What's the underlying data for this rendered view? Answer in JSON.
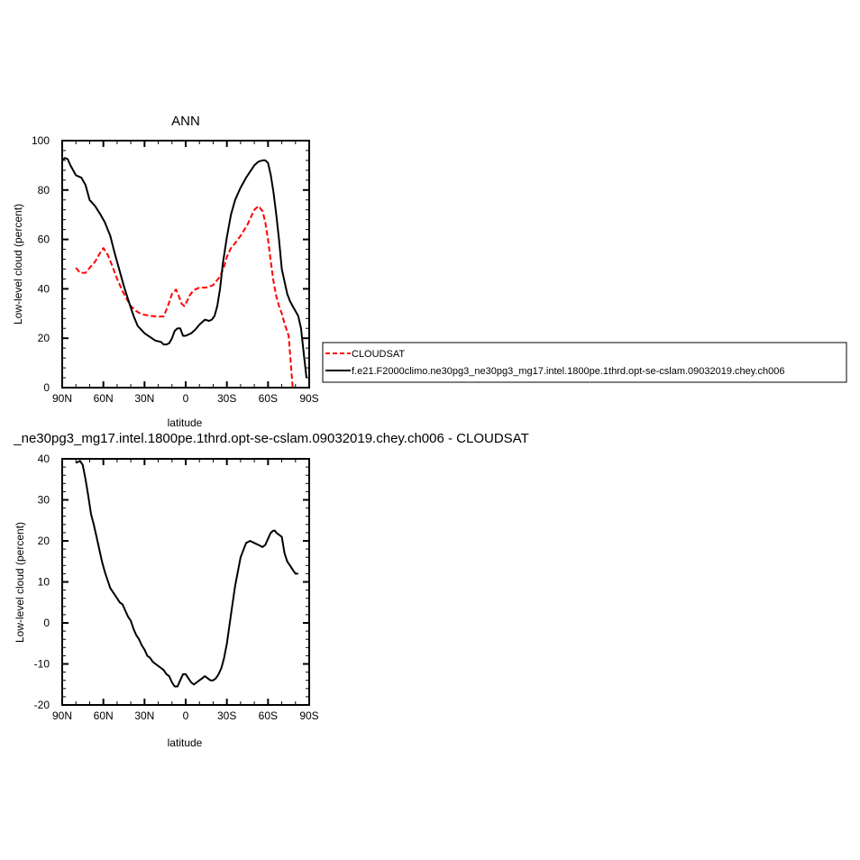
{
  "chart_data": [
    {
      "type": "line",
      "title": "ANN",
      "xlabel": "latitude",
      "ylabel": "Low-level cloud (percent)",
      "xlim": [
        90,
        -90
      ],
      "ylim": [
        0,
        100
      ],
      "xticks": [
        90,
        60,
        30,
        0,
        -30,
        -60,
        -90
      ],
      "xtick_labels": [
        "90N",
        "60N",
        "30N",
        "0",
        "30S",
        "60S",
        "90S"
      ],
      "yticks": [
        0,
        20,
        40,
        60,
        80,
        100
      ],
      "ytick_labels": [
        "0",
        "20",
        "40",
        "60",
        "80",
        "100"
      ],
      "legend_position": "right",
      "series": [
        {
          "name": "CLOUDSAT",
          "color": "#ff0000",
          "dash": "dashed",
          "x": [
            80,
            77,
            73,
            70,
            66,
            63,
            60,
            57,
            54,
            50,
            46,
            43,
            40,
            36,
            33,
            30,
            25,
            20,
            16,
            13,
            10,
            7,
            5,
            3,
            1,
            -1,
            -3,
            -6,
            -10,
            -15,
            -20,
            -25,
            -28,
            -30,
            -33,
            -36,
            -40,
            -45,
            -50,
            -53,
            -56,
            -58,
            -60,
            -62,
            -64,
            -66,
            -68,
            -70,
            -72,
            -75,
            -78,
            -81
          ],
          "y": [
            48.5,
            46.5,
            46.5,
            48.5,
            51,
            54,
            56.5,
            54,
            50,
            44,
            39,
            36,
            33,
            31,
            30,
            29.5,
            29,
            28.8,
            28.8,
            33,
            38,
            39.7,
            37,
            34,
            33,
            35,
            37.5,
            39.5,
            40.5,
            40.5,
            41.5,
            45,
            49,
            53,
            56.5,
            58.5,
            61.5,
            66,
            72,
            73.5,
            71.5,
            67,
            60,
            51,
            43,
            37,
            33,
            30,
            26,
            21,
            0,
            0
          ]
        },
        {
          "name": "f.e21.F2000climo.ne30pg3_ne30pg3_mg17.intel.1800pe.1thrd.opt-se-cslam.09032019.chey.ch006",
          "color": "#000000",
          "dash": "solid",
          "x": [
            90,
            88,
            86,
            84,
            80,
            76,
            73,
            70,
            66,
            62,
            59,
            55,
            52,
            48,
            45,
            41,
            38,
            35,
            30,
            26,
            22,
            18,
            16,
            14,
            12,
            10,
            8,
            6,
            4,
            2,
            0,
            -2,
            -4,
            -7,
            -10,
            -14,
            -17,
            -19,
            -21,
            -23,
            -25,
            -27,
            -30,
            -33,
            -36,
            -40,
            -44,
            -47,
            -50,
            -53,
            -56,
            -58,
            -60,
            -62,
            -64,
            -66,
            -68,
            -70,
            -72,
            -74,
            -76,
            -78,
            -80,
            -82,
            -84,
            -86,
            -88
          ],
          "y": [
            92,
            93,
            92.5,
            90,
            86,
            85,
            82,
            76,
            73.5,
            70,
            67,
            61.5,
            55,
            47,
            41,
            34,
            29,
            25,
            22,
            20.5,
            19,
            18.5,
            17.5,
            17.5,
            18,
            20,
            23,
            24,
            24,
            21,
            21,
            21.5,
            22,
            23.5,
            25.5,
            27.5,
            27,
            27.5,
            29,
            33,
            40,
            50,
            61,
            70,
            76,
            81,
            85,
            87.5,
            90,
            91.5,
            92,
            92,
            91,
            86,
            79,
            70,
            60,
            48,
            43,
            38,
            35,
            33,
            31,
            29,
            24,
            14,
            4
          ]
        }
      ]
    },
    {
      "type": "line",
      "title": "_ne30pg3_mg17.intel.1800pe.1thrd.opt-se-cslam.09032019.chey.ch006 - CLOUDSAT",
      "xlabel": "latitude",
      "ylabel": "Low-level cloud (percent)",
      "xlim": [
        90,
        -90
      ],
      "ylim": [
        -20,
        40
      ],
      "xticks": [
        90,
        60,
        30,
        0,
        -30,
        -60,
        -90
      ],
      "xtick_labels": [
        "90N",
        "60N",
        "30N",
        "0",
        "30S",
        "60S",
        "90S"
      ],
      "yticks": [
        -20,
        -10,
        0,
        10,
        20,
        30,
        40
      ],
      "ytick_labels": [
        "-20",
        "-10",
        "0",
        "10",
        "20",
        "30",
        "40"
      ],
      "series": [
        {
          "name": "",
          "color": "#000000",
          "dash": "solid",
          "x": [
            80,
            77,
            75,
            73,
            71,
            69,
            67,
            65,
            63,
            61,
            59,
            57,
            55,
            52,
            50,
            48,
            46,
            44,
            42,
            40,
            38,
            36,
            34,
            32,
            30,
            28,
            26,
            24,
            22,
            20,
            18,
            16,
            14,
            12,
            10,
            8,
            6,
            4,
            2,
            0,
            -2,
            -4,
            -6,
            -8,
            -10,
            -12,
            -14,
            -16,
            -18,
            -20,
            -22,
            -24,
            -26,
            -28,
            -30,
            -33,
            -36,
            -40,
            -44,
            -47,
            -50,
            -53,
            -56,
            -58,
            -60,
            -62,
            -64,
            -65,
            -66,
            -68,
            -70,
            -72,
            -74,
            -76,
            -78,
            -80,
            -82
          ],
          "y": [
            39,
            39.5,
            38.5,
            35,
            31,
            26.5,
            24,
            21,
            18,
            15,
            12.5,
            10.5,
            8.5,
            7,
            6,
            5,
            4.5,
            3,
            1.5,
            0.5,
            -1.5,
            -3,
            -4,
            -5.5,
            -6.5,
            -8,
            -8.5,
            -9.5,
            -10,
            -10.5,
            -11,
            -11.5,
            -12.5,
            -13,
            -14.5,
            -15.5,
            -15.5,
            -14,
            -12.5,
            -12.5,
            -13.5,
            -14.5,
            -15,
            -14.5,
            -14,
            -13.5,
            -13,
            -13.5,
            -14,
            -14,
            -13.5,
            -12.5,
            -11,
            -8.5,
            -5,
            2,
            9,
            16,
            19.5,
            20,
            19.5,
            19,
            18.5,
            19,
            20.5,
            22,
            22.5,
            22.5,
            22,
            21.5,
            21,
            17,
            15,
            14,
            13,
            12,
            12
          ]
        }
      ]
    }
  ]
}
